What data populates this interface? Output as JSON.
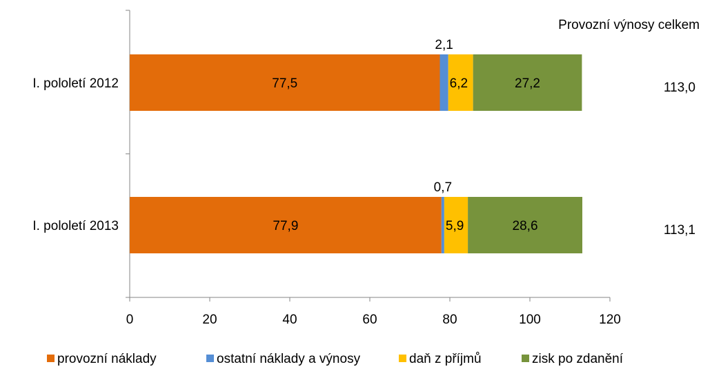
{
  "chart_data": {
    "type": "bar",
    "orientation": "horizontal",
    "stacked": true,
    "categories": [
      "I. pololetí 2012",
      "I. pololetí 2013"
    ],
    "series": [
      {
        "name": "provozní náklady",
        "values": [
          77.5,
          77.9
        ],
        "labels": [
          "77,5",
          "77,9"
        ],
        "color": "#E36C0A"
      },
      {
        "name": "ostatní náklady a výnosy",
        "values": [
          2.1,
          0.7
        ],
        "labels": [
          "2,1",
          "0,7"
        ],
        "color": "#558ED5"
      },
      {
        "name": "daň z příjmů",
        "values": [
          6.2,
          5.9
        ],
        "labels": [
          "6,2",
          "5,9"
        ],
        "color": "#FFC000"
      },
      {
        "name": "zisk po zdanění",
        "values": [
          27.2,
          28.6
        ],
        "labels": [
          "27,2",
          "28,6"
        ],
        "color": "#77933C"
      }
    ],
    "totals_header": "Provozní výnosy celkem",
    "totals": [
      "113,0",
      "113,1"
    ],
    "xlim": [
      0,
      120
    ],
    "xticks": [
      0,
      20,
      40,
      60,
      80,
      100,
      120
    ],
    "legend_position": "bottom",
    "grid": false
  }
}
